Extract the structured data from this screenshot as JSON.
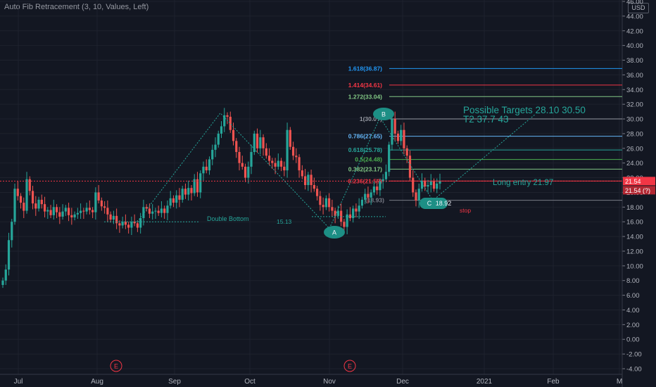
{
  "header": {
    "indicator": "Auto Fib Retracement (3, 10, Values, Left)",
    "currency": "USD"
  },
  "price_tags": {
    "last": "21.54",
    "prev": "21.54 (?)"
  },
  "colors": {
    "bg": "#131722",
    "up": "#26a69a",
    "down": "#ef5350",
    "axis": "#b2b5be"
  },
  "chart_data": {
    "type": "candlestick",
    "xlabel": "",
    "ylabel": "",
    "ylim": [
      -4,
      46
    ],
    "y_ticks": [
      -4,
      -2,
      0,
      2,
      4,
      6,
      8,
      10,
      12,
      14,
      16,
      18,
      20,
      22,
      24,
      26,
      28,
      30,
      32,
      34,
      36,
      38,
      40,
      42,
      44,
      46
    ],
    "y_tick_labels": [
      "-4.00",
      "-2.00",
      "0.00",
      "2.00",
      "4.00",
      "6.00",
      "8.00",
      "10.00",
      "12.00",
      "14.00",
      "16.00",
      "18.00",
      "20.00",
      "22.00",
      "24.00",
      "26.00",
      "28.00",
      "30.00",
      "32.00",
      "34.00",
      "36.00",
      "38.00",
      "40.00",
      "42.00",
      "44.00",
      "46.00"
    ],
    "x_labels": [
      "Jul",
      "Aug",
      "Sep",
      "Oct",
      "Nov",
      "Dec",
      "2021",
      "Feb",
      "M"
    ],
    "earnings_markers": [
      "E",
      "E"
    ],
    "ohlc_close": [
      8.0,
      9.5,
      13.5,
      16.0,
      20.5,
      19.5,
      18.6,
      17.5,
      21.8,
      20.2,
      18.5,
      17.8,
      19.0,
      18.4,
      17.4,
      17.6,
      16.9,
      18.0,
      17.3,
      16.7,
      17.4,
      17.9,
      16.9,
      16.6,
      17.0,
      17.2,
      17.5,
      17.4,
      17.9,
      17.6,
      17.3,
      20.0,
      18.9,
      18.1,
      17.9,
      17.0,
      16.3,
      16.8,
      15.8,
      15.5,
      16.0,
      15.6,
      15.2,
      16.0,
      15.8,
      15.2,
      16.5,
      18.0,
      17.8,
      17.1,
      17.4,
      17.5,
      17.2,
      17.8,
      17.2,
      18.2,
      19.2,
      18.6,
      19.6,
      19.0,
      20.5,
      19.7,
      20.6,
      19.9,
      21.8,
      20.0,
      22.6,
      23.5,
      23.0,
      24.5,
      25.8,
      26.5,
      28.0,
      29.0,
      30.5,
      30.3,
      28.5,
      27.0,
      25.5,
      24.0,
      23.5,
      22.0,
      23.5,
      25.5,
      28.0,
      26.0,
      27.5,
      26.0,
      25.0,
      24.3,
      24.0,
      23.5,
      24.3,
      23.5,
      23.0,
      28.5,
      26.2,
      25.0,
      24.8,
      23.0,
      22.2,
      21.0,
      22.4,
      21.0,
      20.5,
      19.5,
      18.3,
      18.0,
      19.2,
      18.0,
      17.5,
      16.8,
      17.5,
      16.0,
      15.3,
      17.0,
      16.5,
      17.8,
      17.4,
      18.2,
      19.0,
      19.8,
      19.3,
      20.0,
      20.8,
      20.3,
      21.5,
      21.8,
      22.8,
      26.5,
      30.0,
      28.0,
      27.0,
      28.5,
      26.0,
      25.0,
      22.0,
      20.0,
      18.9,
      20.5,
      21.6,
      20.8,
      21.0,
      21.5,
      20.5,
      21.2,
      21.54
    ],
    "annotations": {
      "fib_levels": [
        {
          "label": "1.618(36.87)",
          "value": 36.87,
          "color": "#2196f3"
        },
        {
          "label": "1.414(34.61)",
          "value": 34.61,
          "color": "#f23645"
        },
        {
          "label": "1.272(33.04)",
          "value": 33.04,
          "color": "#81c784"
        },
        {
          "label": "1(30.0?)",
          "value": 30.0,
          "color": "#9598a1"
        },
        {
          "label": "0.786(27.65)",
          "value": 27.65,
          "color": "#64b5f6"
        },
        {
          "label": "0.618(25.78)",
          "value": 25.78,
          "color": "#26a69a"
        },
        {
          "label": "0.5(24.48)",
          "value": 24.48,
          "color": "#4caf50"
        },
        {
          "label": "0.382(23.17)",
          "value": 23.17,
          "color": "#81c784"
        },
        {
          "label": "0.236(21.5?)",
          "value": 21.55,
          "color": "#f23645"
        },
        {
          "label": "(18.93)",
          "value": 18.93,
          "color": "#787b86"
        }
      ],
      "points": {
        "A": "A",
        "B": "B",
        "C": "C"
      },
      "c_value": "18.92",
      "texts": {
        "double_bottom": "Double Bottom",
        "low_value": "15.13",
        "targets_line1": "Possible Targets  28.10  30.50",
        "targets_line2": "T2 37.7     43",
        "long_entry": "Long entry 21.97",
        "stop": "stop"
      }
    }
  }
}
